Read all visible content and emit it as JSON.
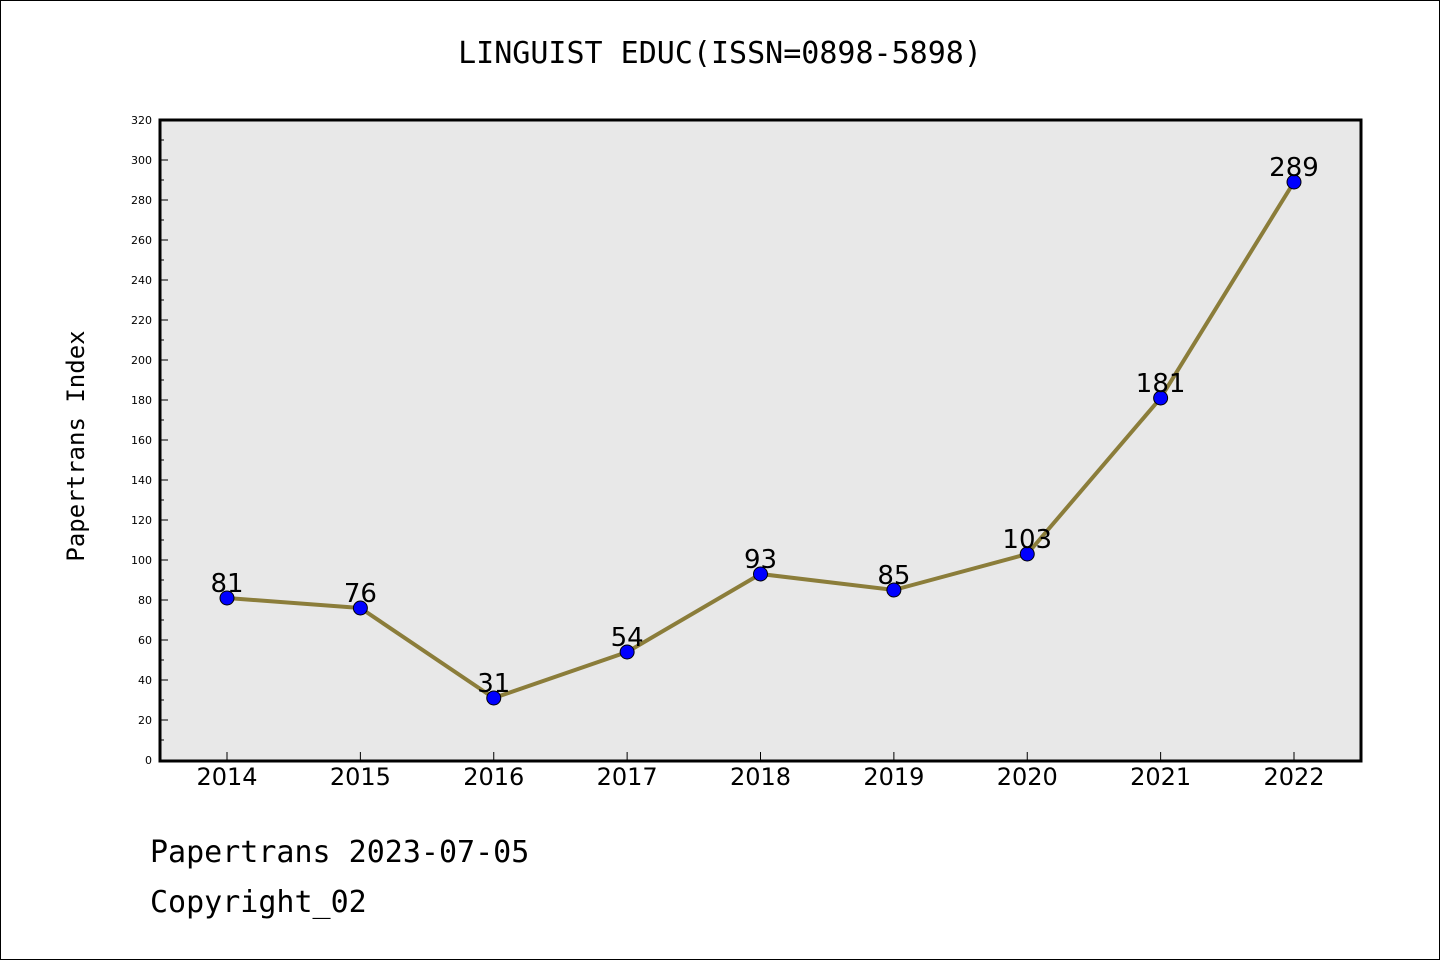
{
  "title": "LINGUIST EDUC(ISSN=0898-5898)",
  "footer": {
    "date": "Papertrans 2023-07-05",
    "copyright": "Copyright_02"
  },
  "chart_data": {
    "type": "line",
    "title": "LINGUIST EDUC(ISSN=0898-5898)",
    "xlabel": "",
    "ylabel": "Papertrans Index",
    "categories": [
      "2014",
      "2015",
      "2016",
      "2017",
      "2018",
      "2019",
      "2020",
      "2021",
      "2022"
    ],
    "series": [
      {
        "values": [
          81,
          76,
          31,
          54,
          93,
          85,
          103,
          181,
          289
        ]
      }
    ],
    "ylim": [
      0,
      320
    ],
    "yticks": [
      0,
      20,
      40,
      60,
      80,
      100,
      120,
      140,
      160,
      180,
      200,
      220,
      240,
      260,
      280,
      300,
      320
    ],
    "grid": false,
    "line_color": "#8b7d3a",
    "marker_color": "#0000ff",
    "plot_background": "#e8e8e8"
  }
}
